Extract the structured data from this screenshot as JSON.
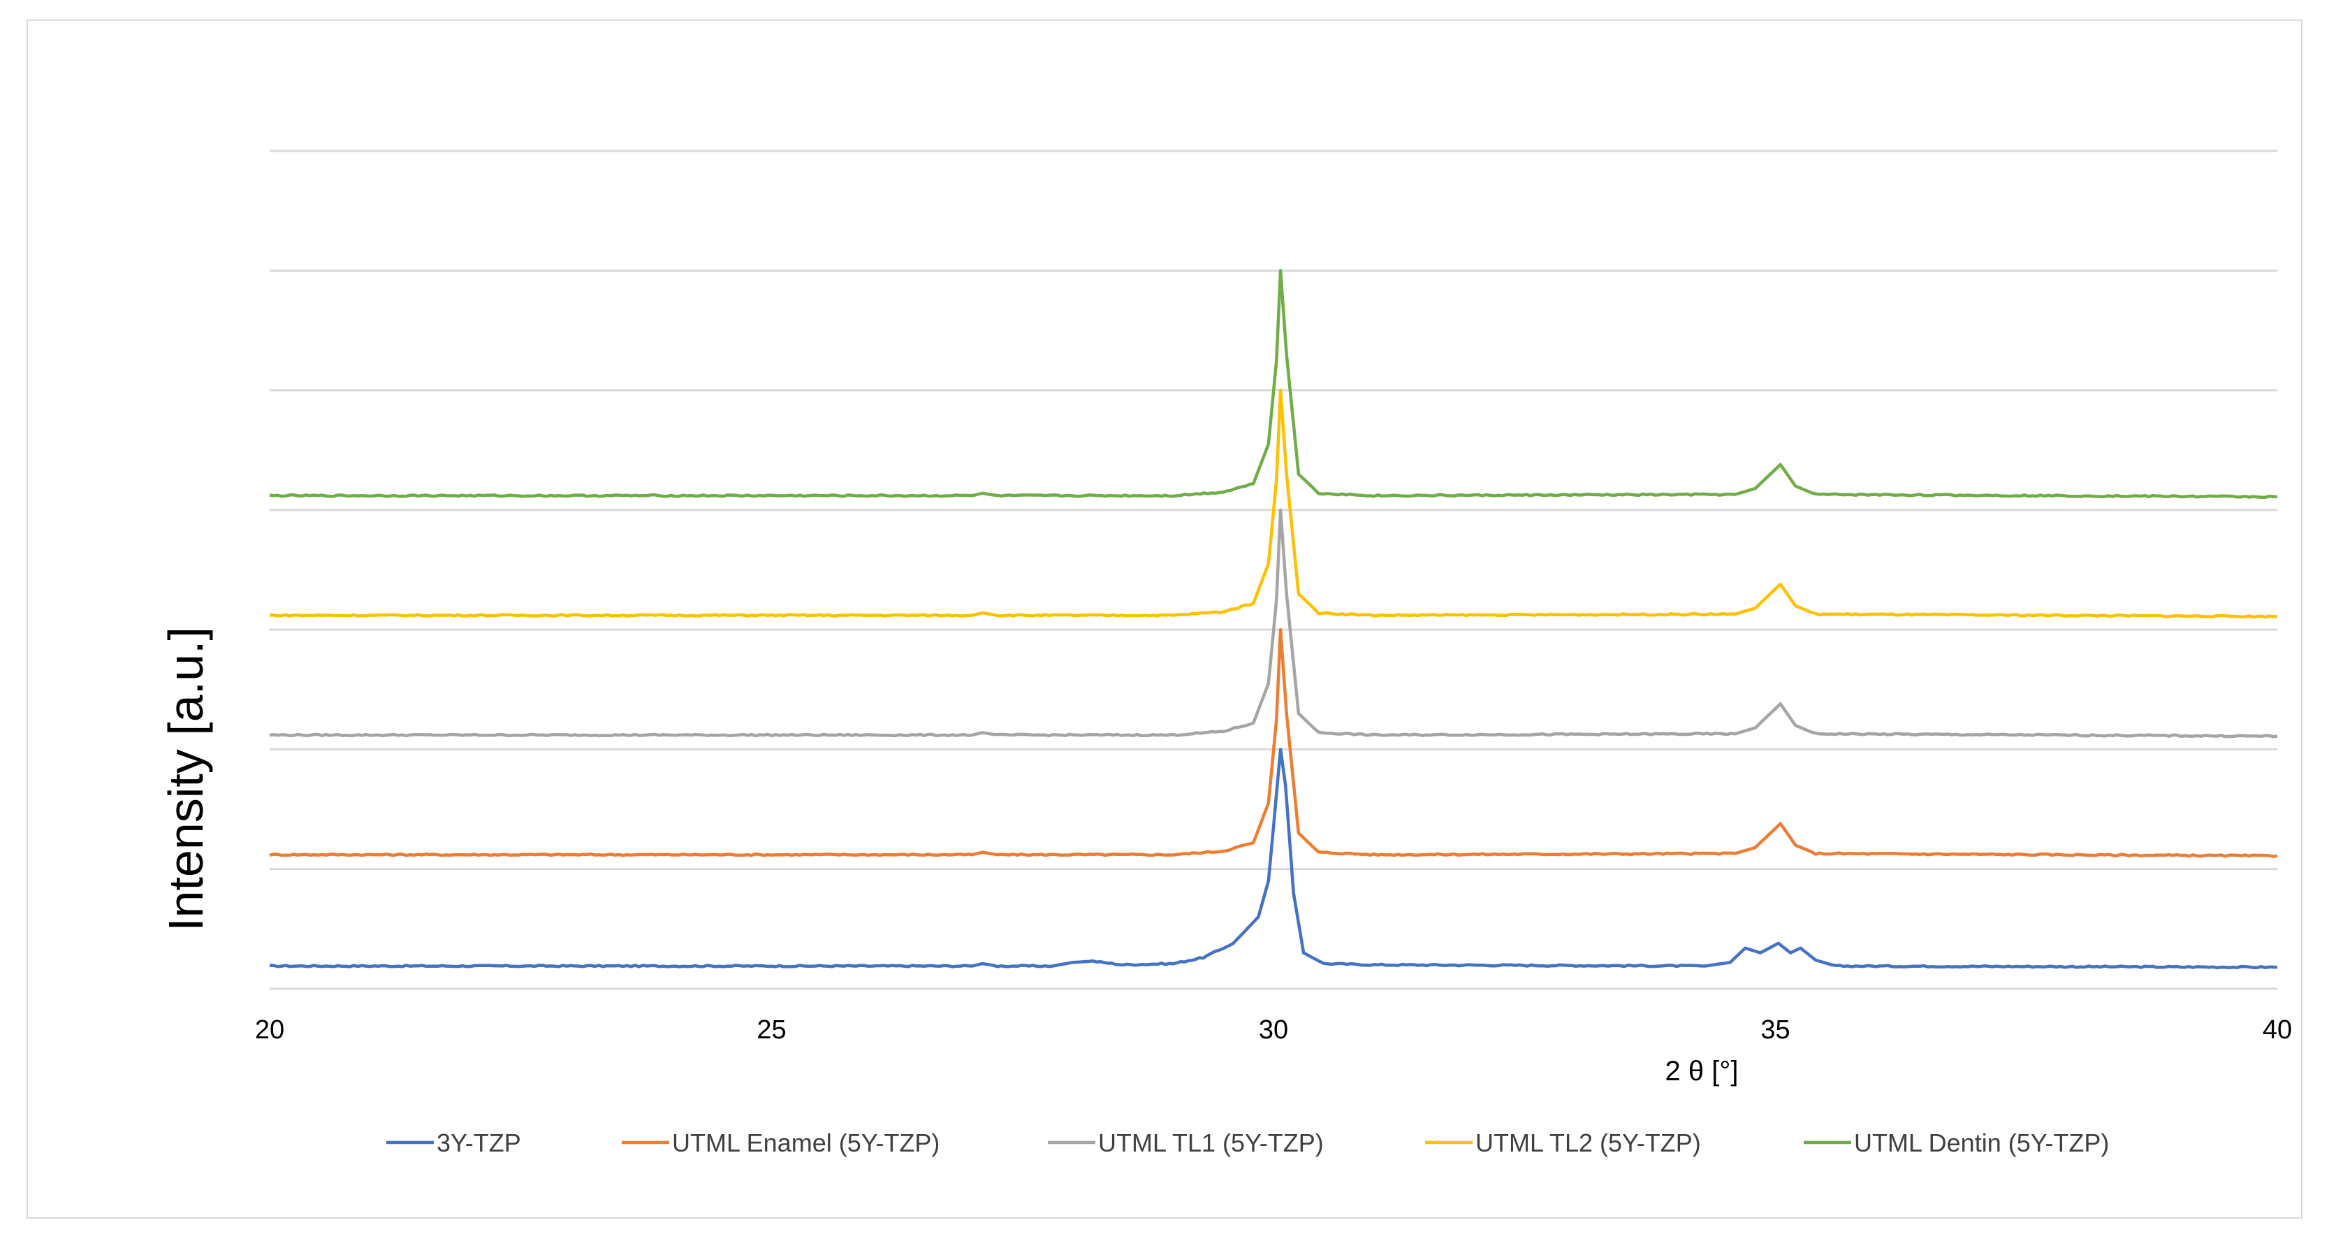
{
  "chart_data": {
    "type": "line",
    "title": "",
    "xlabel": "2 θ  [°]",
    "ylabel": "Intensity [a.u.]",
    "xlim": [
      20,
      40
    ],
    "xticks": [
      "20",
      "25",
      "30",
      "35",
      "40"
    ],
    "ylim": [
      0,
      7
    ],
    "grid": "horizontal",
    "legend_placement": "bottom",
    "series": [
      {
        "name": "3Y-TZP",
        "color": "#4472C4",
        "baseline": 0.19,
        "points": [
          [
            20,
            0.19
          ],
          [
            27.0,
            0.19
          ],
          [
            27.1,
            0.21
          ],
          [
            27.25,
            0.19
          ],
          [
            27.8,
            0.19
          ],
          [
            28.0,
            0.22
          ],
          [
            28.2,
            0.23
          ],
          [
            28.5,
            0.2
          ],
          [
            29.0,
            0.21
          ],
          [
            29.3,
            0.26
          ],
          [
            29.6,
            0.38
          ],
          [
            29.85,
            0.6
          ],
          [
            29.95,
            0.9
          ],
          [
            30.0,
            1.35
          ],
          [
            30.07,
            2.0
          ],
          [
            30.12,
            1.7
          ],
          [
            30.2,
            0.8
          ],
          [
            30.3,
            0.3
          ],
          [
            30.5,
            0.21
          ],
          [
            31,
            0.2
          ],
          [
            34.3,
            0.19
          ],
          [
            34.55,
            0.22
          ],
          [
            34.7,
            0.34
          ],
          [
            34.85,
            0.3
          ],
          [
            35.03,
            0.38
          ],
          [
            35.15,
            0.3
          ],
          [
            35.25,
            0.34
          ],
          [
            35.4,
            0.24
          ],
          [
            35.6,
            0.19
          ],
          [
            40,
            0.18
          ]
        ]
      },
      {
        "name": "UTML Enamel (5Y-TZP)",
        "color": "#ED7D31",
        "baseline": 1.12,
        "points": [
          [
            20,
            1.12
          ],
          [
            27.0,
            1.12
          ],
          [
            27.1,
            1.14
          ],
          [
            27.25,
            1.12
          ],
          [
            29.0,
            1.12
          ],
          [
            29.5,
            1.15
          ],
          [
            29.8,
            1.22
          ],
          [
            29.95,
            1.55
          ],
          [
            30.03,
            2.25
          ],
          [
            30.07,
            3.0
          ],
          [
            30.13,
            2.3
          ],
          [
            30.25,
            1.3
          ],
          [
            30.45,
            1.14
          ],
          [
            31,
            1.12
          ],
          [
            34.6,
            1.13
          ],
          [
            34.8,
            1.18
          ],
          [
            34.95,
            1.3
          ],
          [
            35.05,
            1.38
          ],
          [
            35.2,
            1.2
          ],
          [
            35.4,
            1.13
          ],
          [
            40,
            1.11
          ]
        ]
      },
      {
        "name": "UTML TL1 (5Y-TZP)",
        "color": "#A5A5A5",
        "baseline": 2.12,
        "points": [
          [
            20,
            2.12
          ],
          [
            27.0,
            2.12
          ],
          [
            27.1,
            2.14
          ],
          [
            27.25,
            2.12
          ],
          [
            29.0,
            2.12
          ],
          [
            29.5,
            2.15
          ],
          [
            29.8,
            2.22
          ],
          [
            29.95,
            2.55
          ],
          [
            30.03,
            3.25
          ],
          [
            30.07,
            4.0
          ],
          [
            30.13,
            3.3
          ],
          [
            30.25,
            2.3
          ],
          [
            30.45,
            2.14
          ],
          [
            31,
            2.12
          ],
          [
            34.6,
            2.13
          ],
          [
            34.8,
            2.18
          ],
          [
            34.95,
            2.3
          ],
          [
            35.05,
            2.38
          ],
          [
            35.2,
            2.2
          ],
          [
            35.4,
            2.13
          ],
          [
            40,
            2.11
          ]
        ]
      },
      {
        "name": "UTML TL2 (5Y-TZP)",
        "color": "#FFC000",
        "baseline": 3.12,
        "points": [
          [
            20,
            3.12
          ],
          [
            27.0,
            3.12
          ],
          [
            27.1,
            3.14
          ],
          [
            27.25,
            3.12
          ],
          [
            29.0,
            3.12
          ],
          [
            29.5,
            3.15
          ],
          [
            29.8,
            3.22
          ],
          [
            29.95,
            3.55
          ],
          [
            30.03,
            4.25
          ],
          [
            30.07,
            5.0
          ],
          [
            30.13,
            4.3
          ],
          [
            30.25,
            3.3
          ],
          [
            30.45,
            3.14
          ],
          [
            31,
            3.12
          ],
          [
            34.6,
            3.13
          ],
          [
            34.8,
            3.18
          ],
          [
            34.95,
            3.3
          ],
          [
            35.05,
            3.38
          ],
          [
            35.2,
            3.2
          ],
          [
            35.4,
            3.13
          ],
          [
            40,
            3.11
          ]
        ]
      },
      {
        "name": "UTML Dentin (5Y-TZP)",
        "color": "#70AD47",
        "baseline": 4.12,
        "points": [
          [
            20,
            4.12
          ],
          [
            27.0,
            4.12
          ],
          [
            27.1,
            4.14
          ],
          [
            27.25,
            4.12
          ],
          [
            29.0,
            4.12
          ],
          [
            29.5,
            4.15
          ],
          [
            29.8,
            4.22
          ],
          [
            29.95,
            4.55
          ],
          [
            30.03,
            5.25
          ],
          [
            30.07,
            6.0
          ],
          [
            30.13,
            5.3
          ],
          [
            30.25,
            4.3
          ],
          [
            30.45,
            4.14
          ],
          [
            31,
            4.12
          ],
          [
            34.6,
            4.13
          ],
          [
            34.8,
            4.18
          ],
          [
            34.95,
            4.3
          ],
          [
            35.05,
            4.38
          ],
          [
            35.2,
            4.2
          ],
          [
            35.4,
            4.13
          ],
          [
            40,
            4.11
          ]
        ]
      }
    ]
  }
}
